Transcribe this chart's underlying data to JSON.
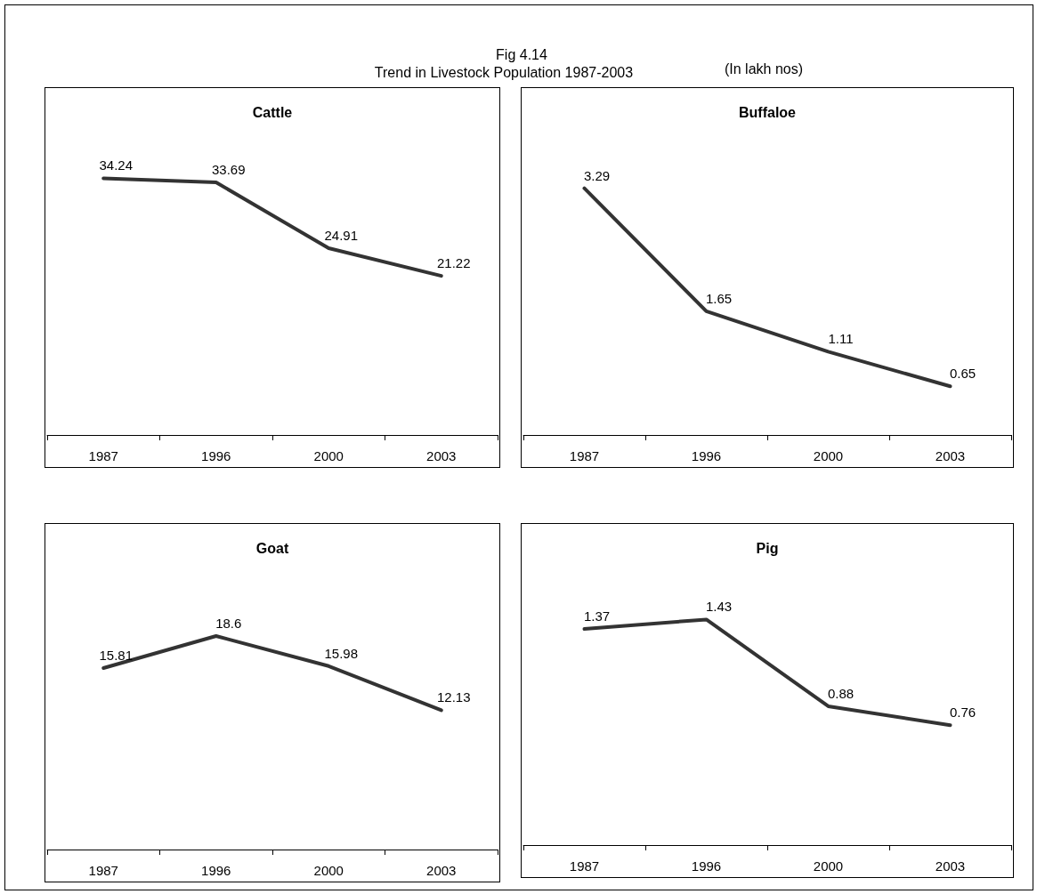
{
  "chart_data": [
    {
      "type": "line",
      "title": "Cattle",
      "annotations": [
        "Fig 4.14",
        "Trend in Livestock Population 1987-2003",
        "(In lakh nos)"
      ],
      "categories": [
        "1987",
        "1996",
        "2000",
        "2003"
      ],
      "values": [
        34.24,
        33.69,
        24.91,
        21.22
      ],
      "color": "#333333",
      "data_labels": true,
      "grid": false,
      "marker": "none",
      "tick_labels": "x"
    },
    {
      "type": "line",
      "title": "Buffaloe",
      "categories": [
        "1987",
        "1996",
        "2000",
        "2003"
      ],
      "values": [
        3.29,
        1.65,
        1.11,
        0.65
      ],
      "color": "#333333",
      "data_labels": true,
      "grid": false,
      "marker": "none",
      "tick_labels": "x"
    },
    {
      "type": "line",
      "title": "Goat",
      "categories": [
        "1987",
        "1996",
        "2000",
        "2003"
      ],
      "values": [
        15.81,
        18.6,
        15.98,
        12.13
      ],
      "color": "#333333",
      "data_labels": true,
      "grid": false,
      "marker": "none",
      "tick_labels": "x"
    },
    {
      "type": "line",
      "title": "Pig",
      "categories": [
        "1987",
        "1996",
        "2000",
        "2003"
      ],
      "values": [
        1.37,
        1.43,
        0.88,
        0.76
      ],
      "color": "#333333",
      "data_labels": true,
      "grid": false,
      "marker": "none",
      "tick_labels": "x"
    }
  ]
}
